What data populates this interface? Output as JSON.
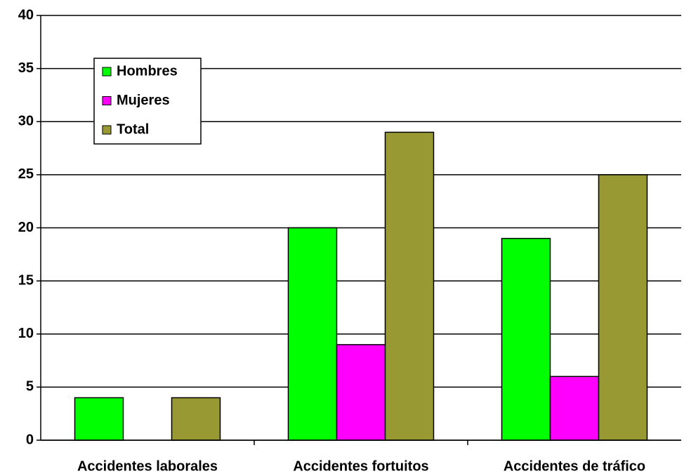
{
  "chart_data": {
    "type": "bar",
    "categories": [
      "Accidentes laborales",
      "Accidentes fortuitos",
      "Accidentes de tráfico"
    ],
    "series": [
      {
        "name": "Hombres",
        "color": "#00ff00",
        "values": [
          4,
          20,
          19
        ]
      },
      {
        "name": "Mujeres",
        "color": "#ff00ff",
        "values": [
          0,
          9,
          6
        ]
      },
      {
        "name": "Total",
        "color": "#999933",
        "values": [
          4,
          29,
          25
        ]
      }
    ],
    "ylim": [
      0,
      40
    ],
    "yticks": [
      0,
      5,
      10,
      15,
      20,
      25,
      30,
      35,
      40
    ],
    "grid": true,
    "legend": "upper left"
  }
}
